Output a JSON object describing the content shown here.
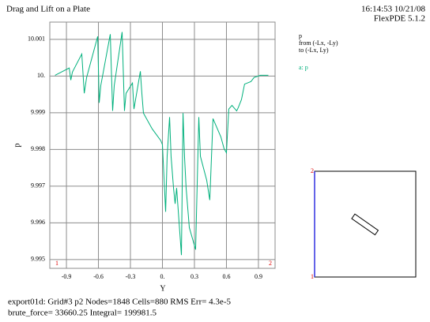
{
  "chart_data": {
    "type": "line",
    "title": "Drag and Lift on a Plate",
    "timestamp": "16:14:53 10/21/08",
    "program": "FlexPDE 5.1.2",
    "x_label": "Y",
    "y_label": "p",
    "legend_title": "p",
    "legend_from": "from (-Lx, -Ly)",
    "legend_to": "to (-Lx, Ly)",
    "endpoint_labels": [
      "1",
      "2"
    ],
    "footer": [
      "export01d:  Grid#3  p2  Nodes=1848 Cells=880 RMS Err= 4.3e-5",
      "brute_force=  33660.25  Integral=  199981.5"
    ],
    "xlim": [
      -1.056,
      1.056
    ],
    "xticks": [
      -0.9,
      -0.6,
      -0.3,
      {
        "value": 0,
        "label": "0."
      },
      0.3,
      0.6,
      0.9
    ],
    "ylim": [
      9.99476,
      10.00147
    ],
    "yticks": [
      9.995,
      9.996,
      9.997,
      9.998,
      9.999,
      {
        "value": 10,
        "label": "10."
      },
      10.001
    ],
    "grid": true,
    "x": [
      -1.007,
      -0.874,
      -0.859,
      -0.844,
      -0.756,
      -0.733,
      -0.711,
      -0.607,
      -0.593,
      -0.578,
      -0.489,
      -0.467,
      -0.452,
      -0.378,
      -0.356,
      -0.341,
      -0.281,
      -0.267,
      -0.207,
      -0.193,
      -0.178,
      -0.096,
      -0.015,
      0,
      0.03,
      0.044,
      0.067,
      0.081,
      0.104,
      0.119,
      0.133,
      0.178,
      0.193,
      0.207,
      0.222,
      0.252,
      0.311,
      0.341,
      0.356,
      0.415,
      0.444,
      0.474,
      0.548,
      0.578,
      0.6,
      0.622,
      0.652,
      0.681,
      0.696,
      0.711,
      0.741,
      0.77,
      0.83,
      0.859,
      0.919,
      0.993
    ],
    "series": [
      {
        "name": "a: p",
        "color": "#00b07c",
        "values": [
          10.00002,
          10.00022,
          9.99989,
          10.00011,
          10.0006,
          9.99953,
          9.99996,
          10.00108,
          9.99927,
          9.99974,
          10.00114,
          9.99905,
          9.99974,
          10.0012,
          9.99905,
          9.99953,
          9.99981,
          9.9991,
          10.00013,
          9.99953,
          9.99899,
          9.99856,
          9.99824,
          9.99813,
          9.9963,
          9.99781,
          9.99888,
          9.99781,
          9.99695,
          9.99652,
          9.99695,
          9.99512,
          9.99899,
          9.99781,
          9.99695,
          9.99587,
          9.99527,
          9.99888,
          9.99781,
          9.99716,
          9.99662,
          9.99884,
          9.99834,
          9.99802,
          9.99791,
          9.9991,
          9.9992,
          9.9991,
          9.99905,
          9.99914,
          9.99936,
          9.99978,
          9.99985,
          9.99996,
          10.00002,
          10.00002
        ]
      }
    ]
  }
}
